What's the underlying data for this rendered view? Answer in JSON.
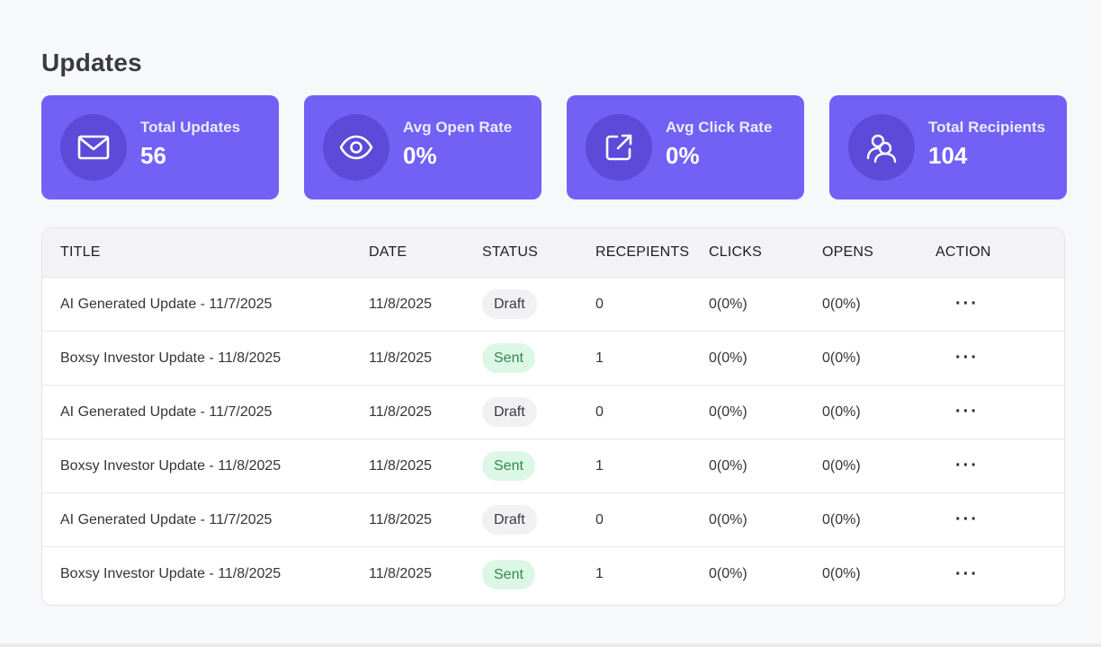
{
  "page": {
    "title": "Updates"
  },
  "cards": [
    {
      "label": "Total Updates",
      "value": "56",
      "icon": "mail-icon"
    },
    {
      "label": "Avg Open Rate",
      "value": "0%",
      "icon": "eye-icon"
    },
    {
      "label": "Avg Click Rate",
      "value": "0%",
      "icon": "external-link-icon"
    },
    {
      "label": "Total Recipients",
      "value": "104",
      "icon": "users-icon"
    }
  ],
  "table": {
    "headers": {
      "title": "TITLE",
      "date": "DATE",
      "status": "STATUS",
      "recipients": "RECEPIENTS",
      "clicks": "CLICKS",
      "opens": "OPENS",
      "action": "ACTION"
    },
    "rows": [
      {
        "title": "AI Generated Update - 11/7/2025",
        "date": "11/8/2025",
        "status": "Draft",
        "recipients": "0",
        "clicks": "0(0%)",
        "opens": "0(0%)",
        "action": "···"
      },
      {
        "title": "Boxsy Investor Update - 11/8/2025",
        "date": "11/8/2025",
        "status": "Sent",
        "recipients": "1",
        "clicks": "0(0%)",
        "opens": "0(0%)",
        "action": "···"
      },
      {
        "title": "AI Generated Update - 11/7/2025",
        "date": "11/8/2025",
        "status": "Draft",
        "recipients": "0",
        "clicks": "0(0%)",
        "opens": "0(0%)",
        "action": "···"
      },
      {
        "title": "Boxsy Investor Update - 11/8/2025",
        "date": "11/8/2025",
        "status": "Sent",
        "recipients": "1",
        "clicks": "0(0%)",
        "opens": "0(0%)",
        "action": "···"
      },
      {
        "title": "AI Generated Update - 11/7/2025",
        "date": "11/8/2025",
        "status": "Draft",
        "recipients": "0",
        "clicks": "0(0%)",
        "opens": "0(0%)",
        "action": "···"
      },
      {
        "title": "Boxsy Investor Update - 11/8/2025",
        "date": "11/8/2025",
        "status": "Sent",
        "recipients": "1",
        "clicks": "0(0%)",
        "opens": "0(0%)",
        "action": "···"
      }
    ]
  },
  "colors": {
    "card_bg": "#7360f5",
    "card_icon_bg": "#5d4ad8",
    "sent_bg": "#ddf7e6",
    "sent_text": "#2f8a4c",
    "draft_bg": "#f1f1f3"
  }
}
